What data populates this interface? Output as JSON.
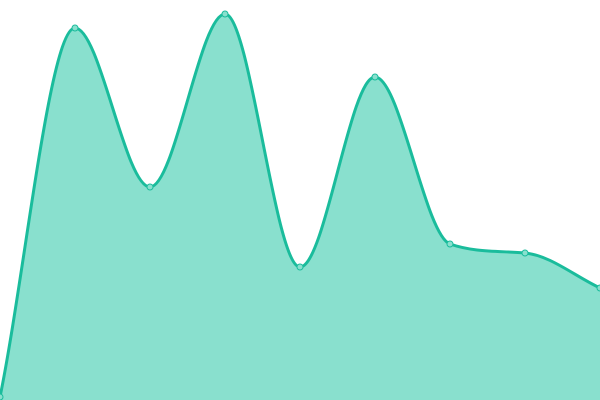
{
  "chart_data": {
    "type": "area",
    "x": [
      0,
      1,
      2,
      3,
      4,
      5,
      6,
      7,
      8
    ],
    "values": [
      3,
      372,
      213,
      386,
      133,
      323,
      156,
      147,
      112
    ],
    "ylim": [
      0,
      400
    ],
    "grid": false,
    "axes_visible": false,
    "curve": "smooth",
    "markers": true,
    "colors": {
      "line": "#1abc9c",
      "fill": "#89e0ce",
      "marker_fill": "#89e0ce"
    }
  }
}
